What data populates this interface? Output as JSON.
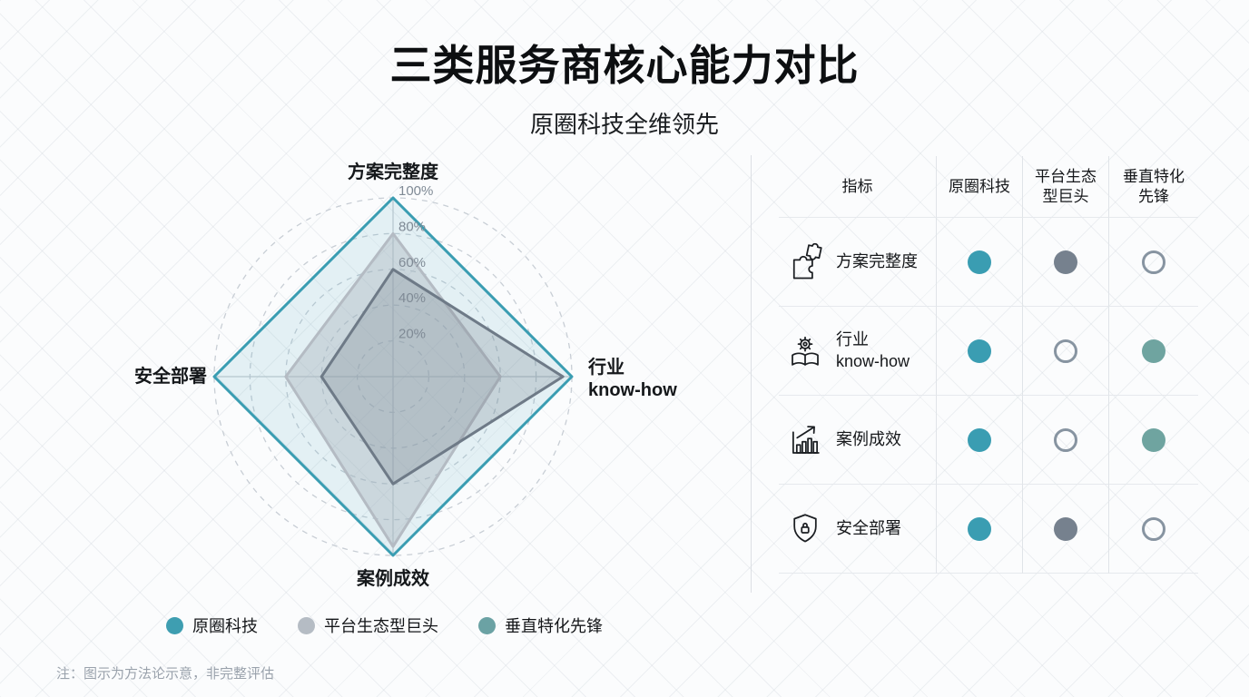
{
  "header": {
    "title": "三类服务商核心能力对比",
    "subtitle": "原圈科技全维领先"
  },
  "chart_data": {
    "type": "radar",
    "axes": [
      "方案完整度",
      "行业\nknow-how",
      "案例成效",
      "安全部署"
    ],
    "axis_order": "top,right,bottom,left",
    "rings_pct": [
      20,
      40,
      60,
      80,
      100
    ],
    "tick_labels": [
      "20%",
      "40%",
      "60%",
      "80%",
      "100%"
    ],
    "grid": "dashed-circles",
    "series": [
      {
        "name": "原圈科技",
        "values": [
          100,
          100,
          100,
          100
        ],
        "stroke": "#3A9DB2",
        "fill": "rgba(58,157,178,0.12)"
      },
      {
        "name": "平台生态型巨头",
        "values": [
          80,
          60,
          95,
          60
        ],
        "stroke": "#B4BBC3",
        "fill": "rgba(168,178,188,0.40)"
      },
      {
        "name": "垂直特化先锋",
        "values": [
          60,
          95,
          60,
          40
        ],
        "stroke": "#6E7A87",
        "fill": "rgba(110,122,135,0.25)"
      }
    ]
  },
  "legend": {
    "items": [
      {
        "label": "原圈科技",
        "color": "#3E9EB1"
      },
      {
        "label": "平台生态型巨头",
        "color": "#B5BCC4"
      },
      {
        "label": "垂直特化先锋",
        "color": "#6BA2A4"
      }
    ]
  },
  "table": {
    "headers": [
      "指标",
      "原圈科技",
      "平台生态\n型巨头",
      "垂直特化\n先锋"
    ],
    "rows": [
      {
        "icon": "puzzle-icon",
        "metric": "方案完整度",
        "dots": [
          "teal",
          "gray",
          "open"
        ]
      },
      {
        "icon": "book-gear-icon",
        "metric": "行业\nknow-how",
        "dots": [
          "teal",
          "open",
          "green"
        ]
      },
      {
        "icon": "chart-growth-icon",
        "metric": "案例成效",
        "dots": [
          "teal",
          "open",
          "green"
        ]
      },
      {
        "icon": "shield-lock-icon",
        "metric": "安全部署",
        "dots": [
          "teal",
          "gray",
          "open"
        ]
      }
    ],
    "dot_colors": {
      "teal": "#3A9DB2",
      "gray": "#76818E",
      "green": "#6FA4A0",
      "open_border": "#8794A1"
    }
  },
  "footnote": "注：图示为方法论示意，非完整评估",
  "colors": {
    "accent_teal": "#3A9DB2",
    "series_light_gray": "#B4BBC3",
    "series_dark_slate": "#6E7A87",
    "series_teal_green": "#6FA4A0",
    "grid_line": "#C8CED5",
    "muted_text": "#7F8A95"
  }
}
